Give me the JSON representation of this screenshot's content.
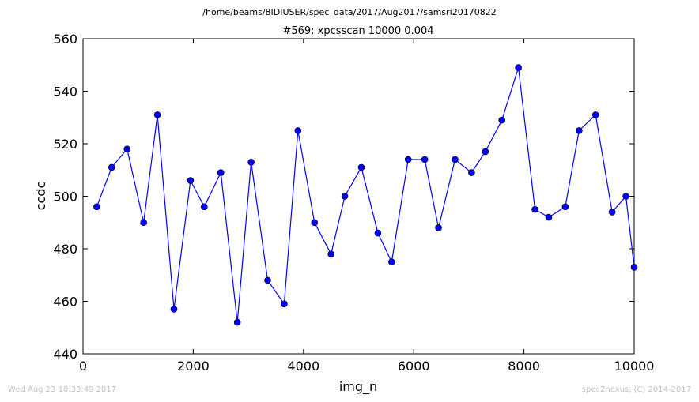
{
  "suptitle": "/home/beams/8IDIUSER/spec_data/2017/Aug2017/samsri20170822",
  "footer": {
    "timestamp": "Wed Aug 23 10:33:49 2017",
    "credit": "spec2nexus, (C) 2014-2017"
  },
  "chart_data": {
    "type": "line",
    "title": "#569: xpcsscan 10000 0.004",
    "xlabel": "img_n",
    "ylabel": "ccdc",
    "xlim": [
      0,
      10000
    ],
    "ylim": [
      440,
      560
    ],
    "xticks": [
      0,
      2000,
      4000,
      6000,
      8000,
      10000
    ],
    "yticks": [
      440,
      460,
      480,
      500,
      520,
      540,
      560
    ],
    "grid": false,
    "marker": "circle",
    "color": "#0000ff",
    "series": [
      {
        "x": [
          250,
          520,
          800,
          1100,
          1350,
          1650,
          1950,
          2200,
          2500,
          2800,
          3050,
          3350,
          3650,
          3900,
          4200,
          4500,
          4750,
          5050,
          5350,
          5600,
          5900,
          6200,
          6450,
          6750,
          7050,
          7300,
          7600,
          7900,
          8200,
          8450,
          8750,
          9000,
          9300,
          9600,
          9850,
          10000
        ],
        "y": [
          496,
          511,
          518,
          490,
          531,
          457,
          506,
          496,
          509,
          452,
          513,
          468,
          459,
          525,
          490,
          478,
          500,
          511,
          486,
          475,
          514,
          514,
          488,
          514,
          509,
          517,
          529,
          549,
          495,
          492,
          496,
          525,
          531,
          494,
          500,
          473
        ]
      }
    ]
  }
}
